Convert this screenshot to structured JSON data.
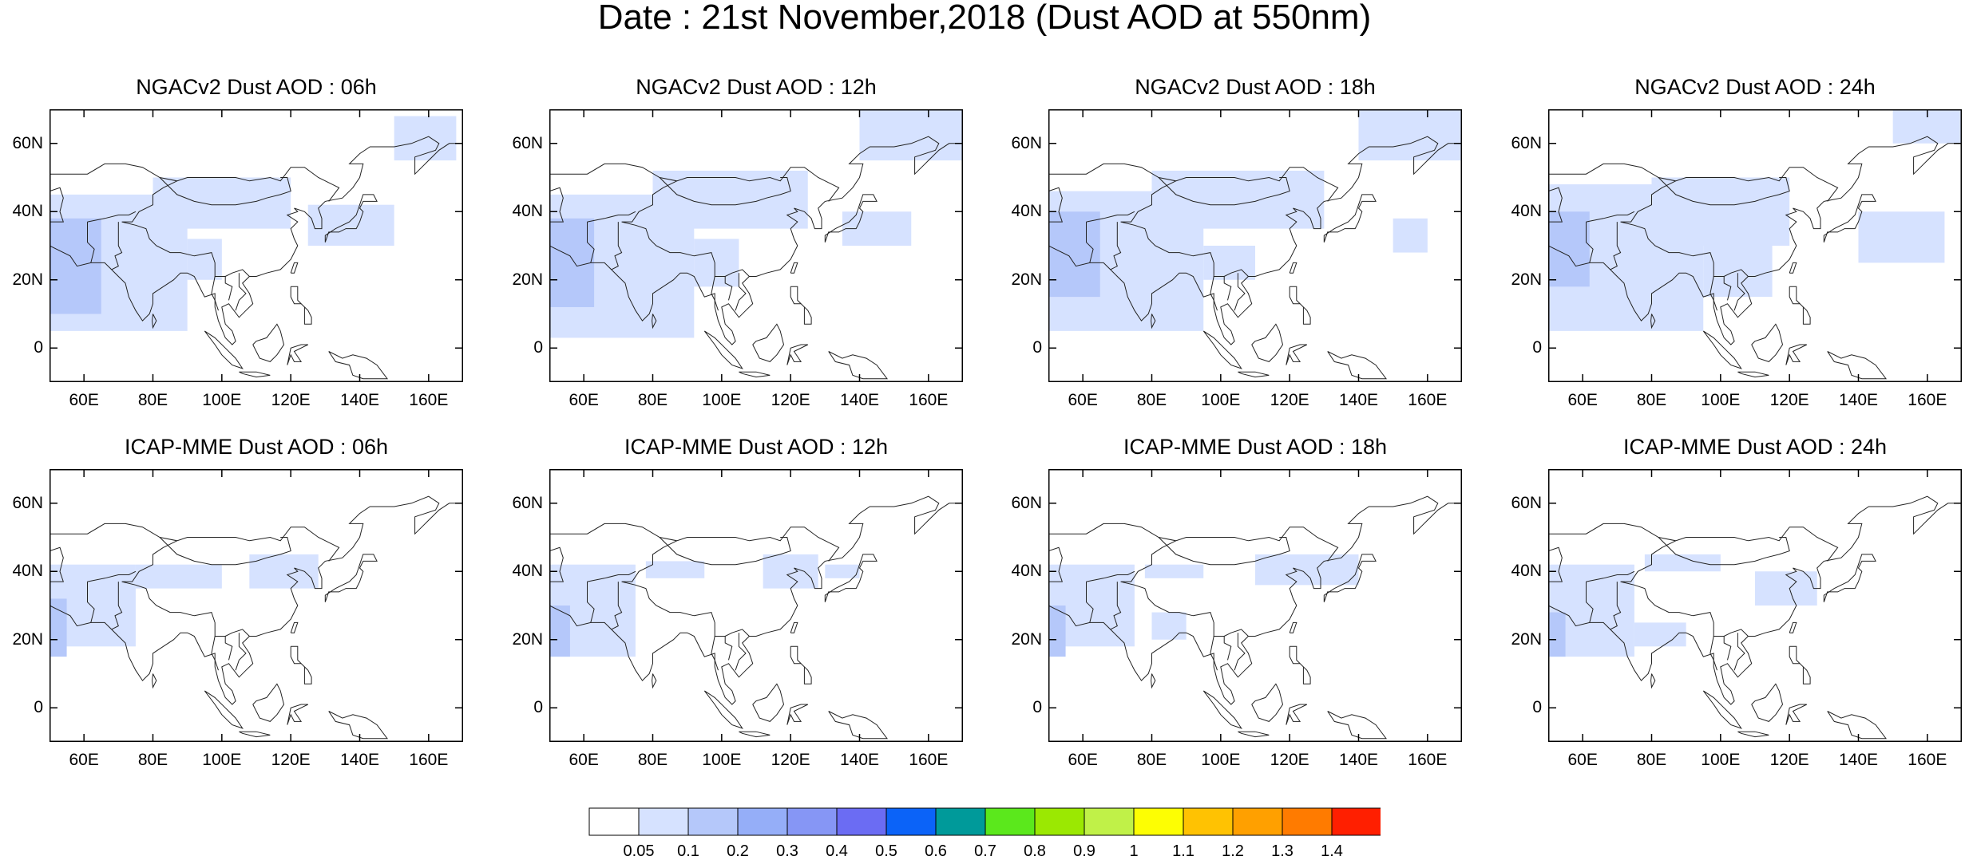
{
  "title": "Date : 21st November,2018 (Dust AOD at 550nm)",
  "lat_ticks": [
    "60N",
    "40N",
    "20N",
    "0"
  ],
  "lon_ticks": [
    "60E",
    "80E",
    "100E",
    "120E",
    "140E",
    "160E"
  ],
  "extent": {
    "lon_min": 50,
    "lon_max": 170,
    "lat_min": -10,
    "lat_max": 70
  },
  "panels": [
    {
      "title": "NGACv2 Dust AOD : 06h",
      "model": "NGACv2",
      "hour": 6
    },
    {
      "title": "NGACv2 Dust AOD : 12h",
      "model": "NGACv2",
      "hour": 12
    },
    {
      "title": "NGACv2 Dust AOD : 18h",
      "model": "NGACv2",
      "hour": 18
    },
    {
      "title": "NGACv2 Dust AOD : 24h",
      "model": "NGACv2",
      "hour": 24
    },
    {
      "title": "ICAP-MME Dust AOD : 06h",
      "model": "ICAP-MME",
      "hour": 6
    },
    {
      "title": "ICAP-MME Dust AOD : 12h",
      "model": "ICAP-MME",
      "hour": 12
    },
    {
      "title": "ICAP-MME Dust AOD : 18h",
      "model": "ICAP-MME",
      "hour": 18
    },
    {
      "title": "ICAP-MME Dust AOD : 24h",
      "model": "ICAP-MME",
      "hour": 24
    }
  ],
  "colorbar": {
    "labels": [
      "0.05",
      "0.1",
      "0.2",
      "0.3",
      "0.4",
      "0.5",
      "0.6",
      "0.7",
      "0.8",
      "0.9",
      "1",
      "1.1",
      "1.2",
      "1.3",
      "1.4"
    ],
    "colors": [
      "#ffffff",
      "#d6e2ff",
      "#b5c8fa",
      "#95aef8",
      "#8696f5",
      "#6b6cf3",
      "#0b63f8",
      "#009a9a",
      "#5be81c",
      "#9be802",
      "#c0f148",
      "#fdfe03",
      "#ffc202",
      "#ffa000",
      "#ff7b00",
      "#ff1f00"
    ]
  },
  "chart_data": {
    "type": "heatmap",
    "shading": [
      {
        "panel": 0,
        "regions": [
          {
            "lon": [
              50,
              65
            ],
            "lat": [
              10,
              38
            ],
            "bin": 2
          },
          {
            "lon": [
              50,
              90
            ],
            "lat": [
              5,
              45
            ],
            "bin": 1
          },
          {
            "lon": [
              80,
              120
            ],
            "lat": [
              35,
              50
            ],
            "bin": 1
          },
          {
            "lon": [
              90,
              100
            ],
            "lat": [
              20,
              32
            ],
            "bin": 1
          },
          {
            "lon": [
              150,
              168
            ],
            "lat": [
              55,
              68
            ],
            "bin": 1
          },
          {
            "lon": [
              125,
              150
            ],
            "lat": [
              30,
              42
            ],
            "bin": 1
          }
        ]
      },
      {
        "panel": 1,
        "regions": [
          {
            "lon": [
              50,
              63
            ],
            "lat": [
              12,
              38
            ],
            "bin": 2
          },
          {
            "lon": [
              50,
              92
            ],
            "lat": [
              3,
              45
            ],
            "bin": 1
          },
          {
            "lon": [
              80,
              125
            ],
            "lat": [
              35,
              52
            ],
            "bin": 1
          },
          {
            "lon": [
              92,
              105
            ],
            "lat": [
              18,
              32
            ],
            "bin": 1
          },
          {
            "lon": [
              140,
              170
            ],
            "lat": [
              55,
              70
            ],
            "bin": 1
          },
          {
            "lon": [
              135,
              155
            ],
            "lat": [
              30,
              40
            ],
            "bin": 1
          }
        ]
      },
      {
        "panel": 2,
        "regions": [
          {
            "lon": [
              50,
              65
            ],
            "lat": [
              15,
              40
            ],
            "bin": 2
          },
          {
            "lon": [
              50,
              95
            ],
            "lat": [
              5,
              46
            ],
            "bin": 1
          },
          {
            "lon": [
              80,
              130
            ],
            "lat": [
              35,
              52
            ],
            "bin": 1
          },
          {
            "lon": [
              95,
              110
            ],
            "lat": [
              20,
              30
            ],
            "bin": 1
          },
          {
            "lon": [
              140,
              170
            ],
            "lat": [
              55,
              70
            ],
            "bin": 1
          },
          {
            "lon": [
              150,
              160
            ],
            "lat": [
              28,
              38
            ],
            "bin": 1
          }
        ]
      },
      {
        "panel": 3,
        "regions": [
          {
            "lon": [
              50,
              62
            ],
            "lat": [
              18,
              40
            ],
            "bin": 2
          },
          {
            "lon": [
              50,
              95
            ],
            "lat": [
              5,
              48
            ],
            "bin": 1
          },
          {
            "lon": [
              80,
              120
            ],
            "lat": [
              30,
              50
            ],
            "bin": 1
          },
          {
            "lon": [
              95,
              115
            ],
            "lat": [
              15,
              30
            ],
            "bin": 1
          },
          {
            "lon": [
              150,
              170
            ],
            "lat": [
              60,
              70
            ],
            "bin": 1
          },
          {
            "lon": [
              140,
              165
            ],
            "lat": [
              25,
              40
            ],
            "bin": 1
          }
        ]
      },
      {
        "panel": 4,
        "regions": [
          {
            "lon": [
              50,
              55
            ],
            "lat": [
              15,
              32
            ],
            "bin": 2
          },
          {
            "lon": [
              50,
              75
            ],
            "lat": [
              18,
              42
            ],
            "bin": 1
          },
          {
            "lon": [
              75,
              100
            ],
            "lat": [
              35,
              42
            ],
            "bin": 1
          },
          {
            "lon": [
              108,
              128
            ],
            "lat": [
              35,
              45
            ],
            "bin": 1
          }
        ]
      },
      {
        "panel": 5,
        "regions": [
          {
            "lon": [
              50,
              56
            ],
            "lat": [
              15,
              30
            ],
            "bin": 2
          },
          {
            "lon": [
              50,
              75
            ],
            "lat": [
              15,
              42
            ],
            "bin": 1
          },
          {
            "lon": [
              78,
              95
            ],
            "lat": [
              38,
              43
            ],
            "bin": 1
          },
          {
            "lon": [
              112,
              128
            ],
            "lat": [
              35,
              45
            ],
            "bin": 1
          },
          {
            "lon": [
              130,
              140
            ],
            "lat": [
              38,
              42
            ],
            "bin": 1
          }
        ]
      },
      {
        "panel": 6,
        "regions": [
          {
            "lon": [
              50,
              55
            ],
            "lat": [
              15,
              30
            ],
            "bin": 2
          },
          {
            "lon": [
              50,
              75
            ],
            "lat": [
              18,
              42
            ],
            "bin": 1
          },
          {
            "lon": [
              78,
              95
            ],
            "lat": [
              38,
              42
            ],
            "bin": 1
          },
          {
            "lon": [
              110,
              140
            ],
            "lat": [
              36,
              45
            ],
            "bin": 1
          },
          {
            "lon": [
              80,
              90
            ],
            "lat": [
              20,
              28
            ],
            "bin": 1
          }
        ]
      },
      {
        "panel": 7,
        "regions": [
          {
            "lon": [
              50,
              55
            ],
            "lat": [
              15,
              28
            ],
            "bin": 2
          },
          {
            "lon": [
              50,
              75
            ],
            "lat": [
              15,
              42
            ],
            "bin": 1
          },
          {
            "lon": [
              78,
              100
            ],
            "lat": [
              40,
              45
            ],
            "bin": 1
          },
          {
            "lon": [
              110,
              128
            ],
            "lat": [
              30,
              40
            ],
            "bin": 1
          },
          {
            "lon": [
              75,
              90
            ],
            "lat": [
              18,
              25
            ],
            "bin": 1
          }
        ]
      }
    ]
  }
}
